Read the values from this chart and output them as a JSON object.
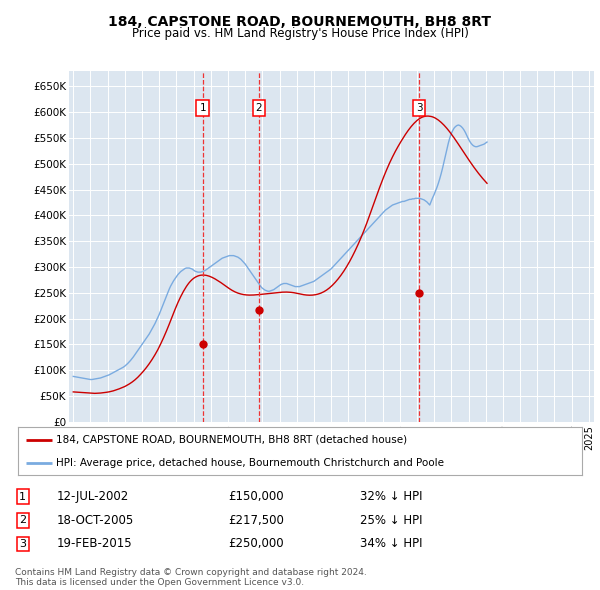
{
  "title": "184, CAPSTONE ROAD, BOURNEMOUTH, BH8 8RT",
  "subtitle": "Price paid vs. HM Land Registry's House Price Index (HPI)",
  "background_color": "#dce6f0",
  "plot_bg_color": "#dce6f0",
  "ylim": [
    0,
    680000
  ],
  "yticks": [
    0,
    50000,
    100000,
    150000,
    200000,
    250000,
    300000,
    350000,
    400000,
    450000,
    500000,
    550000,
    600000,
    650000
  ],
  "ytick_labels": [
    "£0",
    "£50K",
    "£100K",
    "£150K",
    "£200K",
    "£250K",
    "£300K",
    "£350K",
    "£400K",
    "£450K",
    "£500K",
    "£550K",
    "£600K",
    "£650K"
  ],
  "hpi_color": "#7aabe0",
  "price_color": "#cc0000",
  "vline_color": "#ee3333",
  "transactions": [
    {
      "date_num": 2002.53,
      "price": 150000,
      "label": "1",
      "date_str": "12-JUL-2002",
      "price_str": "£150,000",
      "pct": "32% ↓ HPI"
    },
    {
      "date_num": 2005.8,
      "price": 217500,
      "label": "2",
      "date_str": "18-OCT-2005",
      "price_str": "£217,500",
      "pct": "25% ↓ HPI"
    },
    {
      "date_num": 2015.13,
      "price": 250000,
      "label": "3",
      "date_str": "19-FEB-2015",
      "price_str": "£250,000",
      "pct": "34% ↓ HPI"
    }
  ],
  "legend_label_price": "184, CAPSTONE ROAD, BOURNEMOUTH, BH8 8RT (detached house)",
  "legend_label_hpi": "HPI: Average price, detached house, Bournemouth Christchurch and Poole",
  "footer1": "Contains HM Land Registry data © Crown copyright and database right 2024.",
  "footer2": "This data is licensed under the Open Government Licence v3.0.",
  "hpi_data_monthly": {
    "start_year": 1995.0,
    "step": 0.0833,
    "values": [
      88000,
      87500,
      87000,
      86500,
      86000,
      85500,
      85000,
      84500,
      84000,
      83500,
      83000,
      82500,
      82000,
      82000,
      82500,
      83000,
      83500,
      84000,
      84500,
      85000,
      86000,
      87000,
      88000,
      89000,
      90000,
      91000,
      92500,
      94000,
      95500,
      97000,
      98500,
      100000,
      101500,
      103000,
      104500,
      106000,
      108000,
      110500,
      113000,
      116000,
      119000,
      122500,
      126000,
      130000,
      134000,
      138000,
      142000,
      146000,
      150000,
      154000,
      158000,
      162000,
      166000,
      170000,
      175000,
      180000,
      185000,
      190000,
      196000,
      202000,
      208000,
      215000,
      222000,
      229000,
      236000,
      243000,
      250000,
      257000,
      263000,
      268000,
      273000,
      277000,
      281000,
      285000,
      288000,
      291000,
      293000,
      295000,
      297000,
      298000,
      298000,
      298000,
      297000,
      296000,
      294000,
      292000,
      291000,
      290000,
      290000,
      290000,
      291000,
      292000,
      293000,
      295000,
      297000,
      299000,
      301000,
      303000,
      305000,
      307000,
      309000,
      311000,
      313000,
      315000,
      317000,
      318000,
      319000,
      320000,
      321000,
      322000,
      322000,
      322000,
      322000,
      321000,
      320000,
      319000,
      317000,
      315000,
      312000,
      309000,
      306000,
      302000,
      298000,
      294000,
      290000,
      286000,
      282000,
      278000,
      274000,
      270000,
      266000,
      262000,
      259000,
      257000,
      255000,
      254000,
      253000,
      253000,
      254000,
      255000,
      256000,
      258000,
      260000,
      262000,
      264000,
      266000,
      267000,
      268000,
      268000,
      268000,
      267000,
      266000,
      265000,
      264000,
      263000,
      262000,
      262000,
      262000,
      262000,
      263000,
      264000,
      265000,
      266000,
      267000,
      268000,
      269000,
      270000,
      271000,
      272000,
      274000,
      276000,
      278000,
      280000,
      282000,
      284000,
      286000,
      288000,
      290000,
      292000,
      294000,
      296000,
      299000,
      302000,
      305000,
      308000,
      311000,
      314000,
      317000,
      320000,
      323000,
      326000,
      329000,
      332000,
      335000,
      338000,
      341000,
      344000,
      347000,
      350000,
      353000,
      356000,
      359000,
      362000,
      365000,
      368000,
      371000,
      374000,
      377000,
      380000,
      383000,
      386000,
      389000,
      392000,
      395000,
      398000,
      401000,
      404000,
      407000,
      410000,
      412000,
      414000,
      416000,
      418000,
      420000,
      421000,
      422000,
      423000,
      424000,
      425000,
      426000,
      427000,
      427000,
      428000,
      429000,
      430000,
      431000,
      431000,
      432000,
      432000,
      433000,
      433000,
      433000,
      433000,
      432000,
      431000,
      430000,
      428000,
      426000,
      423000,
      420000,
      427000,
      434000,
      440000,
      447000,
      454000,
      462000,
      471000,
      481000,
      492000,
      504000,
      516000,
      528000,
      540000,
      550000,
      558000,
      564000,
      569000,
      572000,
      574000,
      575000,
      574000,
      572000,
      569000,
      565000,
      560000,
      554000,
      548000,
      543000,
      539000,
      536000,
      534000,
      533000,
      533000,
      534000,
      535000,
      536000,
      537000,
      538000,
      540000,
      542000
    ]
  },
  "price_index_monthly": {
    "start_year": 1995.0,
    "step": 0.0833,
    "values": [
      58000,
      57800,
      57600,
      57400,
      57200,
      57000,
      56800,
      56600,
      56400,
      56200,
      56000,
      55800,
      55600,
      55400,
      55200,
      55200,
      55300,
      55400,
      55600,
      55800,
      56100,
      56400,
      56800,
      57200,
      57600,
      58100,
      58700,
      59400,
      60100,
      61000,
      61900,
      62900,
      63900,
      65000,
      66100,
      67300,
      68500,
      70000,
      71500,
      73200,
      75000,
      76900,
      79000,
      81200,
      83600,
      86200,
      89000,
      92000,
      95000,
      98200,
      101500,
      105000,
      108700,
      112500,
      116500,
      120700,
      125100,
      129700,
      134500,
      139500,
      145000,
      150700,
      156600,
      162700,
      169000,
      175500,
      182200,
      189100,
      196200,
      203300,
      210300,
      217300,
      224000,
      230500,
      236600,
      242400,
      247900,
      253000,
      257800,
      262200,
      266200,
      269800,
      272900,
      275600,
      277900,
      279800,
      281300,
      282500,
      283400,
      284000,
      284300,
      284300,
      284100,
      283700,
      283000,
      282100,
      281000,
      279800,
      278400,
      276900,
      275200,
      273500,
      271700,
      269900,
      268000,
      266000,
      264000,
      262000,
      260000,
      258100,
      256300,
      254600,
      253100,
      251700,
      250500,
      249400,
      248500,
      247700,
      247000,
      246500,
      246100,
      245800,
      245600,
      245500,
      245500,
      245600,
      245700,
      245900,
      246100,
      246300,
      246600,
      246900,
      247200,
      247500,
      247800,
      248100,
      248400,
      248700,
      249000,
      249300,
      249600,
      249900,
      250200,
      250500,
      250800,
      251000,
      251200,
      251300,
      251400,
      251400,
      251300,
      251200,
      250900,
      250600,
      250200,
      249700,
      249200,
      248600,
      248000,
      247400,
      246800,
      246300,
      245900,
      245600,
      245400,
      245300,
      245300,
      245500,
      245800,
      246200,
      246800,
      247500,
      248400,
      249400,
      250600,
      252000,
      253600,
      255400,
      257400,
      259600,
      262000,
      264600,
      267400,
      270400,
      273600,
      276900,
      280400,
      284100,
      288000,
      292100,
      296400,
      300900,
      305600,
      310500,
      315600,
      320900,
      326400,
      332100,
      338000,
      344100,
      350400,
      356900,
      363600,
      370500,
      377600,
      384900,
      392400,
      400100,
      407900,
      415700,
      423500,
      431300,
      439000,
      446600,
      454100,
      461500,
      468700,
      475700,
      482500,
      489100,
      495500,
      501700,
      507600,
      513300,
      518800,
      524100,
      529200,
      534100,
      538900,
      543500,
      548000,
      552400,
      556700,
      560800,
      564700,
      568400,
      571900,
      575200,
      578200,
      581000,
      583500,
      585700,
      587600,
      589200,
      590500,
      591400,
      592000,
      592300,
      592300,
      592000,
      591500,
      590700,
      589600,
      588200,
      586500,
      584600,
      582400,
      580000,
      577400,
      574600,
      571600,
      568400,
      565000,
      561500,
      557800,
      554000,
      550100,
      546100,
      542000,
      537900,
      533700,
      529500,
      525300,
      521100,
      516900,
      512700,
      508600,
      504500,
      500500,
      496600,
      492700,
      488900,
      485200,
      481600,
      478100,
      474700,
      471400,
      468200,
      465100,
      462100
    ]
  }
}
